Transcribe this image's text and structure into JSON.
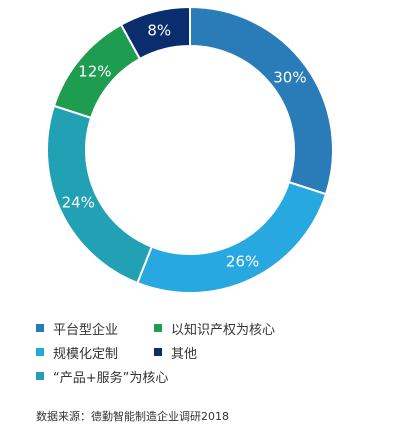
{
  "chart_data": {
    "type": "pie",
    "donut": true,
    "categories": [
      "平台型企业",
      "规模化定制",
      "“产品+服务”为核心",
      "以知识产权为核心",
      "其他"
    ],
    "values": [
      30,
      26,
      24,
      12,
      8
    ],
    "labels": [
      "30%",
      "26%",
      "24%",
      "12%",
      "8%"
    ],
    "colors": [
      "#2a7cb9",
      "#27a8e0",
      "#22a1b5",
      "#1e9c4f",
      "#0a2d6e"
    ],
    "title": "",
    "legend_position": "bottom",
    "source": "数据来源：德勤智能制造企业调研2018"
  }
}
